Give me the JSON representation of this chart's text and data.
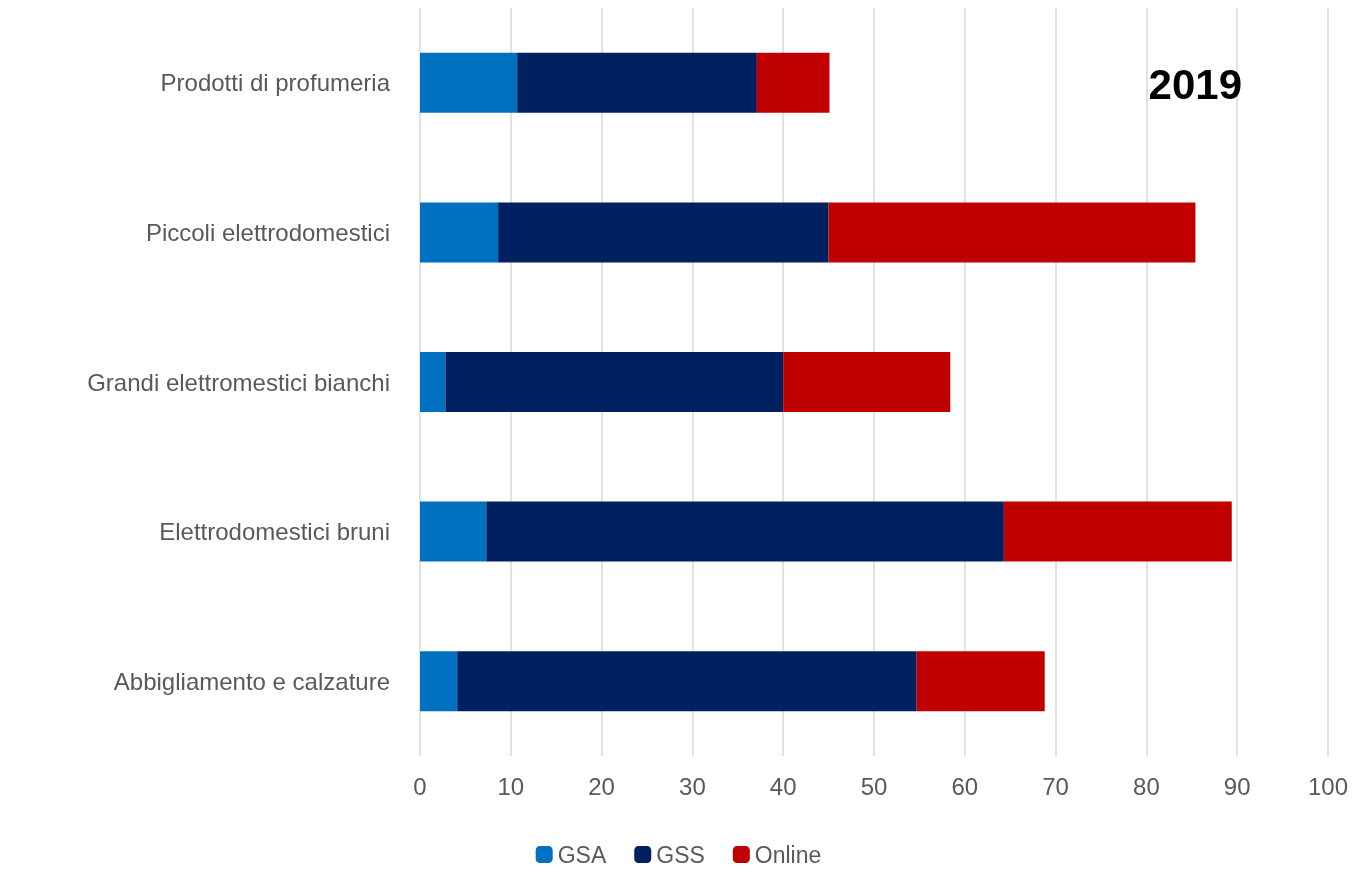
{
  "chart_data": {
    "type": "bar",
    "title": "2019",
    "orientation": "horizontal",
    "stacked": true,
    "categories": [
      "Prodotti di profumeria",
      "Piccoli elettrodomestici",
      "Grandi elettromestici bianchi",
      "Elettrodomestici bruni",
      "Abbigliamento e calzature"
    ],
    "series": [
      {
        "name": "GSA",
        "color": "#0070c0",
        "values": [
          10.7,
          8.6,
          2.8,
          7.3,
          4.1
        ]
      },
      {
        "name": "GSS",
        "color": "#002060",
        "values": [
          26.4,
          36.4,
          37.2,
          57.0,
          50.6
        ]
      },
      {
        "name": "Online",
        "color": "#c00000",
        "values": [
          8.0,
          40.4,
          18.4,
          25.1,
          14.1
        ]
      }
    ],
    "xlim": [
      0,
      100
    ],
    "xticks": [
      0,
      10,
      20,
      30,
      40,
      50,
      60,
      70,
      80,
      90,
      100
    ],
    "grid": "x",
    "legend": "bottom"
  }
}
